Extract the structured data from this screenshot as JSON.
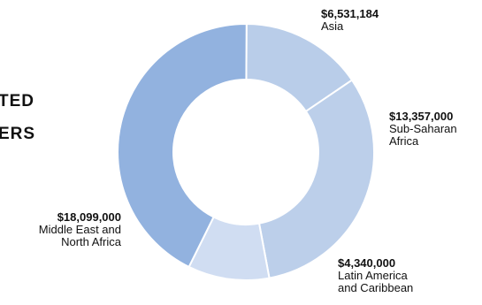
{
  "chart_data": {
    "type": "pie",
    "donut": true,
    "title_lines": [
      "TED",
      "ERS"
    ],
    "categories": [
      "Asia",
      "Sub-Saharan Africa",
      "Latin America and Caribbean",
      "Middle East and North Africa"
    ],
    "values": [
      6531184,
      13357000,
      4340000,
      18099000
    ],
    "value_labels": [
      "$6,531,184",
      "$13,357,000",
      "$4,340,000",
      "$18,099,000"
    ],
    "name_lines": [
      [
        "Asia"
      ],
      [
        "Sub-Saharan",
        "Africa"
      ],
      [
        "Latin America",
        "and Caribbean"
      ],
      [
        "Middle East and",
        "North Africa"
      ]
    ],
    "colors": [
      "#b9cde9",
      "#bccfea",
      "#d0ddf2",
      "#92b2df"
    ]
  }
}
